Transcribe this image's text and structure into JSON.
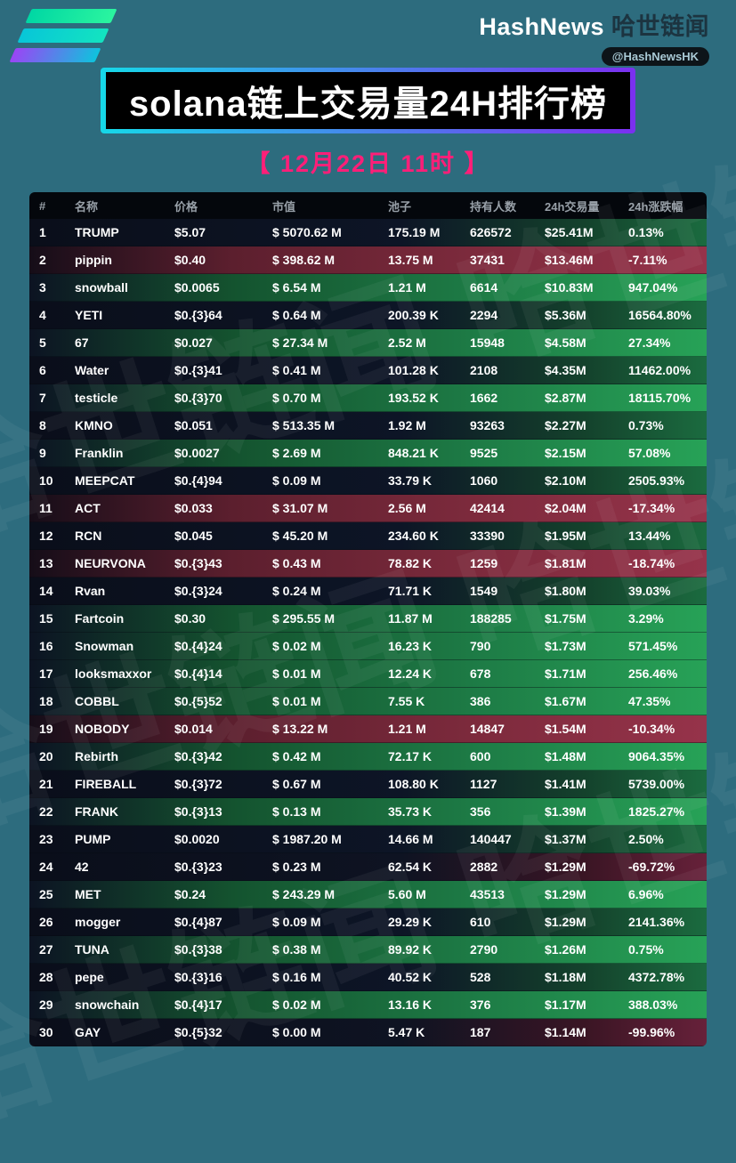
{
  "brand": {
    "name_en": "HashNews",
    "name_zh": "哈世链闻",
    "handle": "@HashNewsHK"
  },
  "title": "solana链上交易量24H排行榜",
  "subtitle": "【 12月22日  11时 】",
  "watermark": "哈世链闻  哈世链闻",
  "colors": {
    "page_background": "#2d6c7e",
    "subtitle_pink": "#ff1f78",
    "gradient_cyan": "#16d8e8",
    "gradient_purple": "#7b2ff0",
    "positive_row_green": "#27a257",
    "negative_row_red": "#96334a"
  },
  "table": {
    "headers": [
      "#",
      "名称",
      "价格",
      "市值",
      "池子",
      "持有人数",
      "24h交易量",
      "24h涨跌幅"
    ],
    "rows": [
      {
        "rank": "1",
        "name": "TRUMP",
        "price": "$5.07",
        "mcap": "$ 5070.62 M",
        "pool": "175.19 M",
        "holders": "626572",
        "vol": "$25.41M",
        "chg": "0.13%",
        "bg": "dark"
      },
      {
        "rank": "2",
        "name": "pippin",
        "price": "$0.40",
        "mcap": "$ 398.62 M",
        "pool": "13.75 M",
        "holders": "37431",
        "vol": "$13.46M",
        "chg": "-7.11%",
        "bg": "red"
      },
      {
        "rank": "3",
        "name": "snowball",
        "price": "$0.0065",
        "mcap": "$ 6.54 M",
        "pool": "1.21 M",
        "holders": "6614",
        "vol": "$10.83M",
        "chg": "947.04%",
        "bg": "green"
      },
      {
        "rank": "4",
        "name": "YETI",
        "price": "$0.{3}64",
        "mcap": "$ 0.64 M",
        "pool": "200.39 K",
        "holders": "2294",
        "vol": "$5.36M",
        "chg": "16564.80%",
        "bg": "dark"
      },
      {
        "rank": "5",
        "name": "67",
        "price": "$0.027",
        "mcap": "$ 27.34 M",
        "pool": "2.52 M",
        "holders": "15948",
        "vol": "$4.58M",
        "chg": "27.34%",
        "bg": "green"
      },
      {
        "rank": "6",
        "name": "Water",
        "price": "$0.{3}41",
        "mcap": "$ 0.41 M",
        "pool": "101.28 K",
        "holders": "2108",
        "vol": "$4.35M",
        "chg": "11462.00%",
        "bg": "dark"
      },
      {
        "rank": "7",
        "name": "testicle",
        "price": "$0.{3}70",
        "mcap": "$ 0.70 M",
        "pool": "193.52 K",
        "holders": "1662",
        "vol": "$2.87M",
        "chg": "18115.70%",
        "bg": "green"
      },
      {
        "rank": "8",
        "name": "KMNO",
        "price": "$0.051",
        "mcap": "$ 513.35 M",
        "pool": "1.92 M",
        "holders": "93263",
        "vol": "$2.27M",
        "chg": "0.73%",
        "bg": "dark"
      },
      {
        "rank": "9",
        "name": "Franklin",
        "price": "$0.0027",
        "mcap": "$ 2.69 M",
        "pool": "848.21 K",
        "holders": "9525",
        "vol": "$2.15M",
        "chg": "57.08%",
        "bg": "green"
      },
      {
        "rank": "10",
        "name": "MEEPCAT",
        "price": "$0.{4}94",
        "mcap": "$ 0.09 M",
        "pool": "33.79 K",
        "holders": "1060",
        "vol": "$2.10M",
        "chg": "2505.93%",
        "bg": "dark"
      },
      {
        "rank": "11",
        "name": "ACT",
        "price": "$0.033",
        "mcap": "$ 31.07 M",
        "pool": "2.56 M",
        "holders": "42414",
        "vol": "$2.04M",
        "chg": "-17.34%",
        "bg": "red"
      },
      {
        "rank": "12",
        "name": "RCN",
        "price": "$0.045",
        "mcap": "$ 45.20 M",
        "pool": "234.60 K",
        "holders": "33390",
        "vol": "$1.95M",
        "chg": "13.44%",
        "bg": "dark"
      },
      {
        "rank": "13",
        "name": "NEURVONA",
        "price": "$0.{3}43",
        "mcap": "$ 0.43 M",
        "pool": "78.82 K",
        "holders": "1259",
        "vol": "$1.81M",
        "chg": "-18.74%",
        "bg": "red"
      },
      {
        "rank": "14",
        "name": "Rvan",
        "price": "$0.{3}24",
        "mcap": "$ 0.24 M",
        "pool": "71.71 K",
        "holders": "1549",
        "vol": "$1.80M",
        "chg": "39.03%",
        "bg": "dark"
      },
      {
        "rank": "15",
        "name": "Fartcoin",
        "price": "$0.30",
        "mcap": "$ 295.55 M",
        "pool": "11.87 M",
        "holders": "188285",
        "vol": "$1.75M",
        "chg": "3.29%",
        "bg": "green"
      },
      {
        "rank": "16",
        "name": "Snowman",
        "price": "$0.{4}24",
        "mcap": "$ 0.02 M",
        "pool": "16.23 K",
        "holders": "790",
        "vol": "$1.73M",
        "chg": "571.45%",
        "bg": "green"
      },
      {
        "rank": "17",
        "name": "looksmaxxor",
        "price": "$0.{4}14",
        "mcap": "$ 0.01 M",
        "pool": "12.24 K",
        "holders": "678",
        "vol": "$1.71M",
        "chg": "256.46%",
        "bg": "green"
      },
      {
        "rank": "18",
        "name": "COBBL",
        "price": "$0.{5}52",
        "mcap": "$ 0.01 M",
        "pool": "7.55 K",
        "holders": "386",
        "vol": "$1.67M",
        "chg": "47.35%",
        "bg": "green"
      },
      {
        "rank": "19",
        "name": "NOBODY",
        "price": "$0.014",
        "mcap": "$ 13.22 M",
        "pool": "1.21 M",
        "holders": "14847",
        "vol": "$1.54M",
        "chg": "-10.34%",
        "bg": "red"
      },
      {
        "rank": "20",
        "name": "Rebirth",
        "price": "$0.{3}42",
        "mcap": "$ 0.42 M",
        "pool": "72.17 K",
        "holders": "600",
        "vol": "$1.48M",
        "chg": "9064.35%",
        "bg": "green"
      },
      {
        "rank": "21",
        "name": "FIREBALL",
        "price": "$0.{3}72",
        "mcap": "$ 0.67 M",
        "pool": "108.80 K",
        "holders": "1127",
        "vol": "$1.41M",
        "chg": "5739.00%",
        "bg": "dark"
      },
      {
        "rank": "22",
        "name": "FRANK",
        "price": "$0.{3}13",
        "mcap": "$ 0.13 M",
        "pool": "35.73 K",
        "holders": "356",
        "vol": "$1.39M",
        "chg": "1825.27%",
        "bg": "green"
      },
      {
        "rank": "23",
        "name": "PUMP",
        "price": "$0.0020",
        "mcap": "$ 1987.20 M",
        "pool": "14.66 M",
        "holders": "140447",
        "vol": "$1.37M",
        "chg": "2.50%",
        "bg": "dark"
      },
      {
        "rank": "24",
        "name": "42",
        "price": "$0.{3}23",
        "mcap": "$ 0.23 M",
        "pool": "62.54 K",
        "holders": "2882",
        "vol": "$1.29M",
        "chg": "-69.72%",
        "bg": "darkred"
      },
      {
        "rank": "25",
        "name": "MET",
        "price": "$0.24",
        "mcap": "$ 243.29 M",
        "pool": "5.60 M",
        "holders": "43513",
        "vol": "$1.29M",
        "chg": "6.96%",
        "bg": "green"
      },
      {
        "rank": "26",
        "name": "mogger",
        "price": "$0.{4}87",
        "mcap": "$ 0.09 M",
        "pool": "29.29 K",
        "holders": "610",
        "vol": "$1.29M",
        "chg": "2141.36%",
        "bg": "dark"
      },
      {
        "rank": "27",
        "name": "TUNA",
        "price": "$0.{3}38",
        "mcap": "$ 0.38 M",
        "pool": "89.92 K",
        "holders": "2790",
        "vol": "$1.26M",
        "chg": "0.75%",
        "bg": "green"
      },
      {
        "rank": "28",
        "name": "pepe",
        "price": "$0.{3}16",
        "mcap": "$ 0.16 M",
        "pool": "40.52 K",
        "holders": "528",
        "vol": "$1.18M",
        "chg": "4372.78%",
        "bg": "dark"
      },
      {
        "rank": "29",
        "name": "snowchain",
        "price": "$0.{4}17",
        "mcap": "$ 0.02 M",
        "pool": "13.16 K",
        "holders": "376",
        "vol": "$1.17M",
        "chg": "388.03%",
        "bg": "green"
      },
      {
        "rank": "30",
        "name": "GAY",
        "price": "$0.{5}32",
        "mcap": "$ 0.00 M",
        "pool": "5.47 K",
        "holders": "187",
        "vol": "$1.14M",
        "chg": "-99.96%",
        "bg": "darkred"
      }
    ]
  }
}
